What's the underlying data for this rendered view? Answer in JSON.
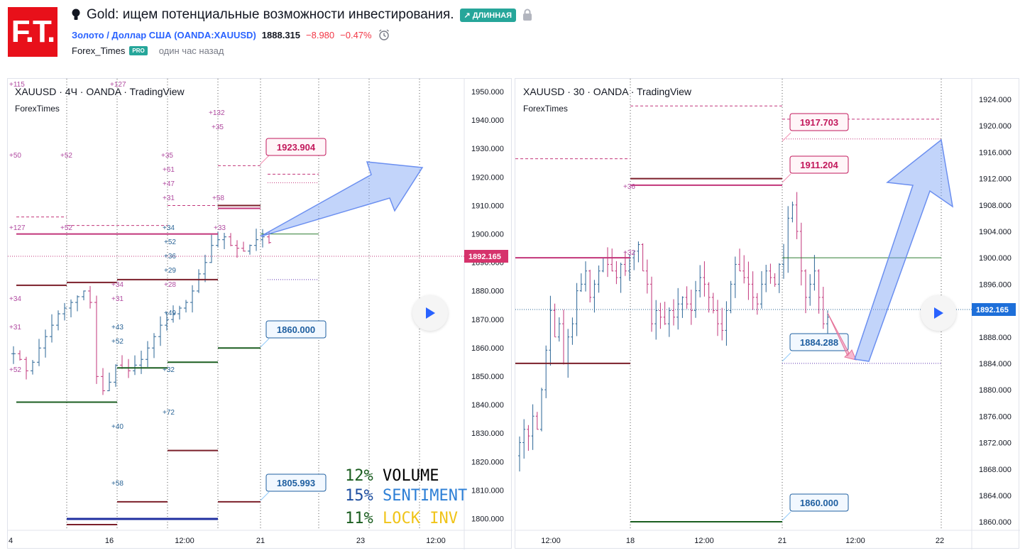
{
  "logo": {
    "text": "F.T."
  },
  "header": {
    "title": "Gold: ищем потенциальные возможности инвестирования.",
    "badge": "↗ ДЛИННАЯ",
    "symbol_name": "Золото / Доллар США (OANDA:XAUUSD)",
    "price": "1888.315",
    "change": "−8.980",
    "change_pct": "−0.47%",
    "author": "Forex_Times",
    "author_badge": "PRO",
    "time_ago": "один час назад"
  },
  "colors": {
    "up": "#2a6496",
    "down": "#c2357a",
    "accent_pink": "#d6336c",
    "accent_blue": "#2962ff",
    "green_badge": "#26a69a"
  },
  "chart_left": {
    "title": "XAUUSD · 4Ч · OANDA · TradingView",
    "subtitle": "ForexTimes",
    "y_ticks": [
      "1950.000",
      "1940.000",
      "1930.000",
      "1920.000",
      "1910.000",
      "1900.000",
      "1890.000",
      "1880.000",
      "1870.000",
      "1860.000",
      "1850.000",
      "1840.000",
      "1830.000",
      "1820.000",
      "1810.000",
      "1800.000"
    ],
    "x_ticks": [
      "4",
      "16",
      "12:00",
      "21",
      "23",
      "12:00"
    ],
    "last_price": "1892.165",
    "callouts": [
      "1923.904",
      "1860.000",
      "1805.993"
    ],
    "labels": [
      "+115",
      "+127",
      "+132",
      "+35",
      "+50",
      "+52",
      "+35",
      "+61",
      "+47",
      "+31",
      "+58",
      "+127",
      "+52",
      "+34",
      "+33",
      "+52",
      "+36",
      "+29",
      "+28",
      "+34",
      "+31",
      "+34",
      "+49",
      "+31",
      "+43",
      "+52",
      "+52",
      "+32",
      "+72",
      "+40",
      "+58"
    ]
  },
  "chart_right": {
    "title": "XAUUSD · 30 · OANDA · TradingView",
    "subtitle": "ForexTimes",
    "y_ticks": [
      "1924.000",
      "1920.000",
      "1916.000",
      "1912.000",
      "1908.000",
      "1904.000",
      "1900.000",
      "1896.000",
      "1892.000",
      "1888.000",
      "1884.000",
      "1880.000",
      "1876.000",
      "1872.000",
      "1868.000",
      "1864.000",
      "1860.000"
    ],
    "x_ticks": [
      "12:00",
      "18",
      "12:00",
      "21",
      "12:00",
      "22"
    ],
    "last_price": "1892.165",
    "callouts": [
      "1917.703",
      "1911.204",
      "1884.288",
      "1860.000"
    ],
    "labels": [
      "+36",
      "+32"
    ]
  },
  "stats": [
    {
      "pct": "12%",
      "label": "VOLUME",
      "pct_color": "#1b5e20",
      "label_color": "#000000"
    },
    {
      "pct": "15%",
      "label": "SENTIMENT",
      "pct_color": "#1f4fa0",
      "label_color": "#2d7fd6"
    },
    {
      "pct": "11%",
      "label": "LOCK INV",
      "pct_color": "#1b5e20",
      "label_color": "#f0c419"
    }
  ]
}
